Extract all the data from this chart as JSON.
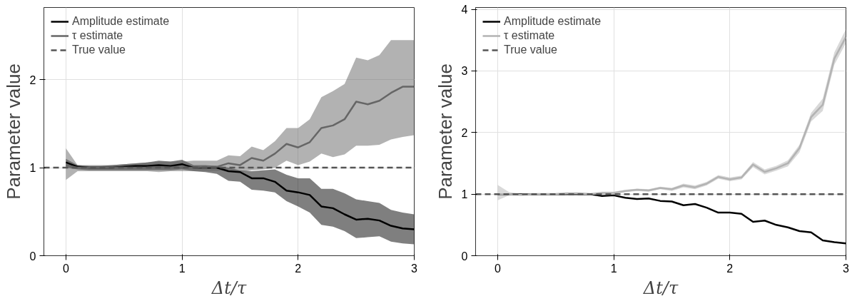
{
  "chart_data": [
    {
      "type": "line",
      "xlabel": "Δt/τ",
      "ylabel": "Parameter value",
      "x": [
        0,
        0.1,
        0.2,
        0.3,
        0.4,
        0.5,
        0.6,
        0.7,
        0.8,
        0.9,
        1.0,
        1.1,
        1.2,
        1.3,
        1.4,
        1.5,
        1.6,
        1.7,
        1.8,
        1.9,
        2.0,
        2.1,
        2.2,
        2.3,
        2.4,
        2.5,
        2.6,
        2.7,
        2.8,
        2.9,
        3.0
      ],
      "series": [
        {
          "name": "Amplitude estimate",
          "color": "#000000",
          "values": [
            1.06,
            1.01,
            1.0,
            1.0,
            1.0,
            1.01,
            1.02,
            1.02,
            1.03,
            1.02,
            1.04,
            1.0,
            1.0,
            1.0,
            0.96,
            0.95,
            0.88,
            0.88,
            0.84,
            0.74,
            0.72,
            0.69,
            0.56,
            0.54,
            0.47,
            0.41,
            0.42,
            0.4,
            0.34,
            0.31,
            0.3
          ],
          "lower": [
            1.0,
            0.98,
            0.97,
            0.97,
            0.97,
            0.97,
            0.97,
            0.97,
            0.97,
            0.97,
            0.98,
            0.96,
            0.95,
            0.93,
            0.85,
            0.84,
            0.75,
            0.74,
            0.72,
            0.62,
            0.56,
            0.49,
            0.35,
            0.33,
            0.28,
            0.2,
            0.21,
            0.22,
            0.16,
            0.14,
            0.13
          ],
          "upper": [
            1.1,
            1.03,
            1.02,
            1.02,
            1.03,
            1.04,
            1.05,
            1.06,
            1.08,
            1.07,
            1.09,
            1.03,
            1.03,
            1.02,
            1.0,
            0.97,
            0.96,
            0.97,
            0.98,
            0.92,
            0.88,
            0.88,
            0.76,
            0.76,
            0.71,
            0.64,
            0.62,
            0.6,
            0.52,
            0.49,
            0.47
          ]
        },
        {
          "name": "τ estimate",
          "color": "#666666",
          "values": [
            1.03,
            1.0,
            1.0,
            1.0,
            1.0,
            1.0,
            1.0,
            1.0,
            1.0,
            1.0,
            1.0,
            1.0,
            1.01,
            1.01,
            1.05,
            1.03,
            1.11,
            1.08,
            1.16,
            1.27,
            1.23,
            1.29,
            1.45,
            1.48,
            1.55,
            1.75,
            1.72,
            1.76,
            1.85,
            1.92,
            1.92
          ],
          "lower": [
            0.86,
            0.96,
            0.96,
            0.96,
            0.96,
            0.96,
            0.96,
            0.96,
            0.95,
            0.96,
            0.96,
            0.96,
            0.96,
            0.96,
            0.98,
            0.95,
            0.97,
            0.98,
            1.0,
            1.08,
            1.03,
            1.07,
            1.16,
            1.12,
            1.15,
            1.25,
            1.25,
            1.26,
            1.32,
            1.35,
            1.37
          ],
          "upper": [
            1.22,
            1.03,
            1.03,
            1.03,
            1.03,
            1.04,
            1.05,
            1.06,
            1.07,
            1.07,
            1.07,
            1.08,
            1.08,
            1.08,
            1.14,
            1.13,
            1.24,
            1.2,
            1.3,
            1.45,
            1.45,
            1.55,
            1.8,
            1.87,
            1.95,
            2.25,
            2.22,
            2.28,
            2.45,
            2.45,
            2.45
          ]
        }
      ],
      "ref_lines": [
        {
          "axis": "y",
          "value": 1,
          "label": "True value",
          "color": "#555555",
          "line_style": "dashed"
        }
      ],
      "xlim": [
        -0.19,
        3
      ],
      "ylim": [
        0,
        2.82
      ],
      "xticks": [
        0,
        1,
        2,
        3
      ],
      "yticks": [
        0,
        1,
        2
      ],
      "grid": true,
      "legend": "top left",
      "marker": "none",
      "line_style": "solid"
    },
    {
      "type": "line",
      "xlabel": "Δt/τ",
      "ylabel": "Parameter value",
      "x": [
        0,
        0.1,
        0.2,
        0.3,
        0.4,
        0.5,
        0.6,
        0.7,
        0.8,
        0.9,
        1.0,
        1.1,
        1.2,
        1.3,
        1.4,
        1.5,
        1.6,
        1.7,
        1.8,
        1.9,
        2.0,
        2.1,
        2.2,
        2.3,
        2.4,
        2.5,
        2.6,
        2.7,
        2.8,
        2.9,
        3.0
      ],
      "series": [
        {
          "name": "Amplitude estimate",
          "color": "#000000",
          "values": [
            1.0,
            1.0,
            1.0,
            1.0,
            1.0,
            1.0,
            1.0,
            1.0,
            1.0,
            0.97,
            0.98,
            0.94,
            0.92,
            0.93,
            0.89,
            0.88,
            0.82,
            0.84,
            0.78,
            0.7,
            0.7,
            0.68,
            0.55,
            0.57,
            0.5,
            0.46,
            0.4,
            0.38,
            0.25,
            0.22,
            0.2
          ]
        },
        {
          "name": "τ estimate",
          "color": "#b3b3b3",
          "values": [
            1.0,
            1.0,
            0.99,
            1.0,
            1.0,
            1.0,
            1.01,
            1.01,
            1.0,
            1.02,
            1.02,
            1.05,
            1.07,
            1.06,
            1.1,
            1.08,
            1.14,
            1.11,
            1.17,
            1.28,
            1.24,
            1.27,
            1.48,
            1.36,
            1.42,
            1.5,
            1.75,
            2.25,
            2.45,
            3.2,
            3.55
          ],
          "lower": [
            0.9,
            0.98,
            0.97,
            0.98,
            0.98,
            0.98,
            0.99,
            0.99,
            0.98,
            1.0,
            1.0,
            1.03,
            1.05,
            1.04,
            1.08,
            1.05,
            1.11,
            1.08,
            1.14,
            1.25,
            1.21,
            1.24,
            1.44,
            1.32,
            1.38,
            1.45,
            1.68,
            2.18,
            2.35,
            3.1,
            3.45
          ],
          "upper": [
            1.15,
            1.03,
            1.01,
            1.02,
            1.02,
            1.02,
            1.03,
            1.03,
            1.02,
            1.04,
            1.04,
            1.07,
            1.09,
            1.08,
            1.12,
            1.1,
            1.17,
            1.14,
            1.2,
            1.31,
            1.27,
            1.3,
            1.52,
            1.4,
            1.46,
            1.55,
            1.8,
            2.32,
            2.55,
            3.3,
            3.68
          ]
        }
      ],
      "ref_lines": [
        {
          "axis": "y",
          "value": 1,
          "label": "True value",
          "color": "#555555",
          "line_style": "dashed"
        }
      ],
      "xlim": [
        -0.19,
        3
      ],
      "ylim": [
        0,
        4.03
      ],
      "xticks": [
        0,
        1,
        2,
        3
      ],
      "yticks": [
        0,
        1,
        2,
        3,
        4
      ],
      "grid": true,
      "legend": "top left",
      "marker": "none",
      "line_style": "solid"
    }
  ]
}
